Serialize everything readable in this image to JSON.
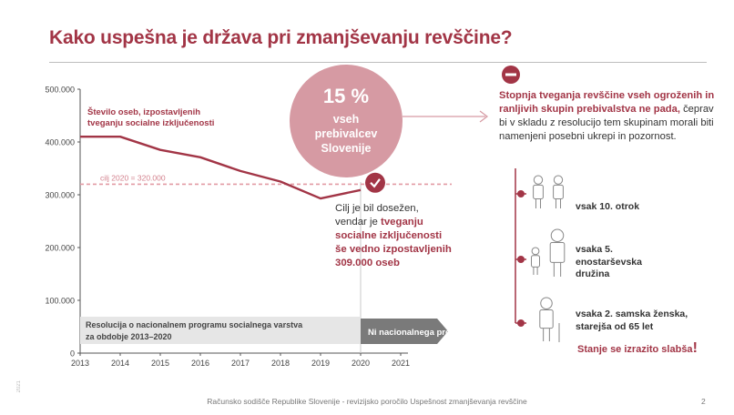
{
  "title": "Kako uspešna je država pri zmanjševanju revščine?",
  "chart_data": {
    "type": "line",
    "x": [
      2013,
      2014,
      2015,
      2016,
      2017,
      2018,
      2019,
      2020
    ],
    "x_ticks": [
      2013,
      2014,
      2015,
      2016,
      2017,
      2018,
      2019,
      2020,
      2021
    ],
    "series": [
      {
        "name": "Število oseb, izpostavljenih tveganju socialne izključenosti",
        "values": [
          410000,
          410000,
          385000,
          371000,
          345000,
          325000,
          293000,
          309000
        ],
        "color": "#a23546"
      }
    ],
    "y_ticks": [
      0,
      100000,
      200000,
      300000,
      400000,
      500000
    ],
    "y_tick_labels": [
      "0",
      "100.000",
      "200.000",
      "300.000",
      "400.000",
      "500.000"
    ],
    "ylim": [
      0,
      500000
    ],
    "xlim": [
      2013,
      2021
    ],
    "target": {
      "value": 320000,
      "label": "cilj 2020 = 320.000",
      "color": "#e29aa4"
    },
    "grid": false
  },
  "programme_bar": {
    "label": "Resolucija o nacionalnem programu socialnega varstva za obdobje 2013–2020",
    "from": 2013,
    "to": 2020
  },
  "no_programme_bar": {
    "label": "Ni nacionalnega programa!",
    "from": 2020,
    "to": 2021
  },
  "bubble": {
    "value": "15 %",
    "line1": "vseh",
    "line2": "prebivalcev",
    "line3": "Slovenije"
  },
  "note": {
    "text1": "Cilj je bil dosežen,",
    "text2": "vendar je ",
    "strong1": "tveganju",
    "strong2": "socialne izključenosti",
    "strong3": "še vedno izpostavljenih",
    "strong4": "309.000 oseb"
  },
  "description": {
    "strong": "Stopnja tveganja revščine vseh ogroženih in ranljivih skupin prebivalstva ne pada,",
    "rest": " čeprav bi v skladu z resolucijo tem skupinam morali biti namenjeni posebni ukrepi in pozornost."
  },
  "groups": [
    {
      "label1": "vsak 10. otrok",
      "label2": "",
      "label3": "",
      "icon": "children-icon"
    },
    {
      "label1": "vsaka 5.",
      "label2": "enostarševska",
      "label3": "družina",
      "icon": "single-parent-icon"
    },
    {
      "label1": "vsaka 2. samska ženska,",
      "label2": "starejša od 65 let",
      "label3": "",
      "icon": "elderly-woman-icon"
    }
  ],
  "worse": {
    "text": "Stanje se izrazito slabša",
    "bang": "!"
  },
  "footer": "Računsko sodišče Republike Slovenije - revizijsko poročilo Uspešnost zmanjševanja revščine",
  "page_number": "2",
  "side_mark": "2021",
  "colors": {
    "accent": "#a23546",
    "bubble": "#d69aa3",
    "target": "#e29aa4",
    "bar_grey": "#e6e6e6",
    "bar_dark": "#7a7a7a"
  }
}
